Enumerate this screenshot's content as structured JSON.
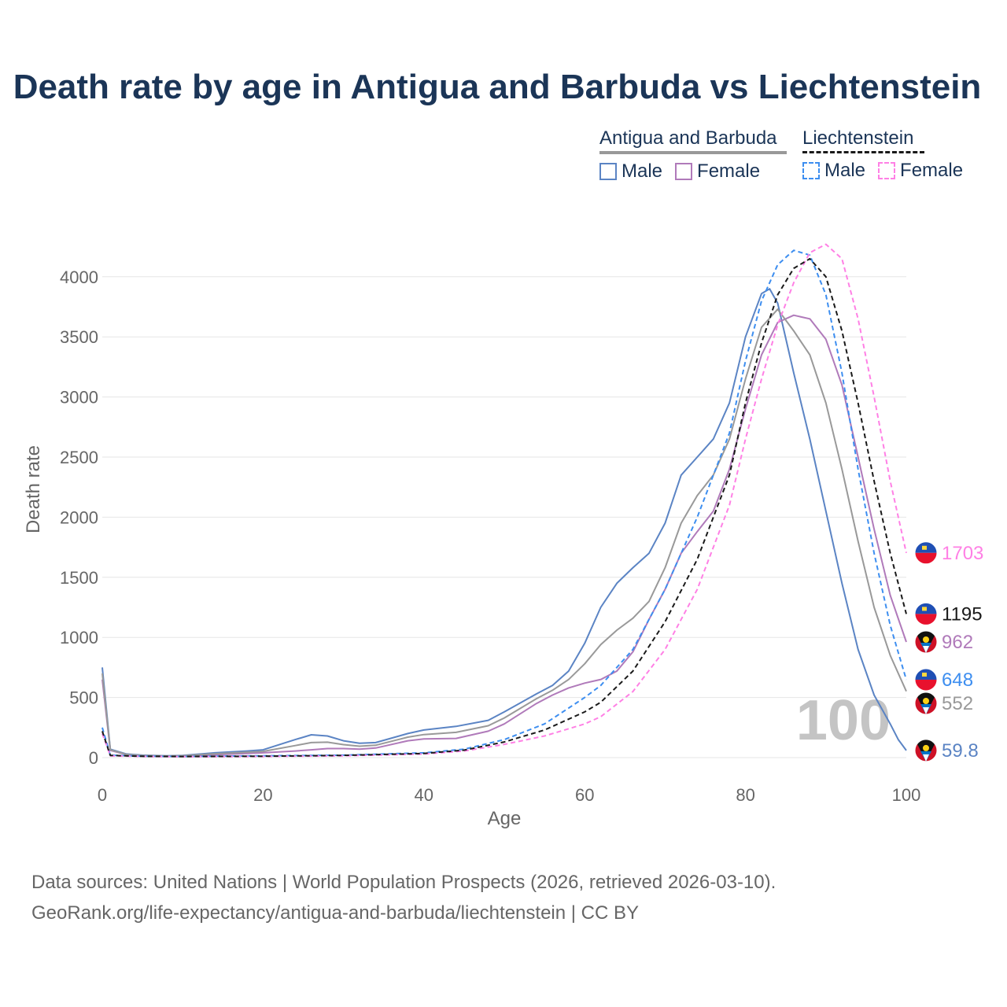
{
  "title": "Death rate by age in Antigua and Barbuda vs Liechtenstein",
  "legend": {
    "groups": [
      {
        "name": "Antigua and Barbuda",
        "items": [
          {
            "label": "Male",
            "color": "#5b84c4",
            "style": "solid"
          },
          {
            "label": "Female",
            "color": "#b07aba",
            "style": "solid"
          }
        ]
      },
      {
        "name": "Liechtenstein",
        "items": [
          {
            "label": "Male",
            "color": "#3d8ef0",
            "style": "dashed"
          },
          {
            "label": "Female",
            "color": "#ff80e5",
            "style": "dashed"
          }
        ]
      }
    ]
  },
  "big_label": "100",
  "footer": {
    "line1": "Data sources: United Nations | World Population Prospects (2026, retrieved 2026-03-10).",
    "line2": "GeoRank.org/life-expectancy/antigua-and-barbuda/liechtenstein | CC BY"
  },
  "chart_data": {
    "type": "line",
    "title": "Death rate by age in Antigua and Barbuda vs Liechtenstein",
    "xlabel": "Age",
    "ylabel": "Death rate",
    "xlim": [
      0,
      100
    ],
    "ylim": [
      0,
      4300
    ],
    "xticks": [
      0,
      20,
      40,
      60,
      80,
      100
    ],
    "yticks": [
      0,
      500,
      1000,
      1500,
      2000,
      2500,
      3000,
      3500,
      4000
    ],
    "grid": true,
    "series": [
      {
        "name": "Antigua and Barbuda Male",
        "color": "#5b84c4",
        "dash": "solid",
        "end_label": "59.8",
        "flag": "antigua-and-barbuda",
        "points": [
          [
            0,
            750
          ],
          [
            1,
            70
          ],
          [
            3,
            30
          ],
          [
            5,
            20
          ],
          [
            8,
            15
          ],
          [
            10,
            18
          ],
          [
            14,
            40
          ],
          [
            18,
            55
          ],
          [
            20,
            65
          ],
          [
            24,
            150
          ],
          [
            26,
            190
          ],
          [
            28,
            180
          ],
          [
            30,
            140
          ],
          [
            32,
            120
          ],
          [
            34,
            125
          ],
          [
            38,
            200
          ],
          [
            40,
            230
          ],
          [
            44,
            260
          ],
          [
            48,
            310
          ],
          [
            50,
            380
          ],
          [
            54,
            530
          ],
          [
            56,
            600
          ],
          [
            58,
            720
          ],
          [
            60,
            950
          ],
          [
            62,
            1250
          ],
          [
            64,
            1450
          ],
          [
            66,
            1580
          ],
          [
            68,
            1700
          ],
          [
            70,
            1950
          ],
          [
            72,
            2350
          ],
          [
            74,
            2500
          ],
          [
            76,
            2650
          ],
          [
            78,
            2950
          ],
          [
            80,
            3500
          ],
          [
            82,
            3860
          ],
          [
            83,
            3900
          ],
          [
            84,
            3780
          ],
          [
            86,
            3200
          ],
          [
            88,
            2650
          ],
          [
            90,
            2050
          ],
          [
            92,
            1450
          ],
          [
            94,
            900
          ],
          [
            96,
            520
          ],
          [
            98,
            280
          ],
          [
            99,
            150
          ],
          [
            100,
            59.8
          ]
        ]
      },
      {
        "name": "Antigua and Barbuda Female",
        "color": "#b07aba",
        "dash": "solid",
        "end_label": "962",
        "flag": "antigua-and-barbuda",
        "points": [
          [
            0,
            650
          ],
          [
            1,
            60
          ],
          [
            3,
            25
          ],
          [
            5,
            15
          ],
          [
            8,
            12
          ],
          [
            10,
            14
          ],
          [
            14,
            25
          ],
          [
            18,
            35
          ],
          [
            20,
            40
          ],
          [
            24,
            55
          ],
          [
            26,
            65
          ],
          [
            28,
            75
          ],
          [
            30,
            75
          ],
          [
            32,
            70
          ],
          [
            34,
            80
          ],
          [
            38,
            140
          ],
          [
            40,
            155
          ],
          [
            44,
            160
          ],
          [
            48,
            220
          ],
          [
            50,
            280
          ],
          [
            54,
            450
          ],
          [
            56,
            520
          ],
          [
            58,
            580
          ],
          [
            60,
            620
          ],
          [
            62,
            650
          ],
          [
            64,
            720
          ],
          [
            66,
            880
          ],
          [
            68,
            1150
          ],
          [
            70,
            1400
          ],
          [
            72,
            1700
          ],
          [
            74,
            1880
          ],
          [
            76,
            2050
          ],
          [
            78,
            2400
          ],
          [
            80,
            2900
          ],
          [
            82,
            3350
          ],
          [
            84,
            3620
          ],
          [
            86,
            3680
          ],
          [
            88,
            3650
          ],
          [
            90,
            3480
          ],
          [
            92,
            3100
          ],
          [
            94,
            2500
          ],
          [
            96,
            1900
          ],
          [
            98,
            1350
          ],
          [
            100,
            962
          ]
        ]
      },
      {
        "name": "Antigua and Barbuda (both sexes)",
        "color": "#999999",
        "dash": "solid",
        "end_label": "552",
        "flag": "antigua-and-barbuda",
        "points": [
          [
            0,
            700
          ],
          [
            1,
            65
          ],
          [
            3,
            27
          ],
          [
            5,
            17
          ],
          [
            8,
            14
          ],
          [
            10,
            16
          ],
          [
            14,
            32
          ],
          [
            18,
            45
          ],
          [
            20,
            52
          ],
          [
            24,
            100
          ],
          [
            26,
            125
          ],
          [
            28,
            128
          ],
          [
            30,
            108
          ],
          [
            32,
            95
          ],
          [
            34,
            103
          ],
          [
            38,
            170
          ],
          [
            40,
            192
          ],
          [
            44,
            210
          ],
          [
            48,
            265
          ],
          [
            50,
            330
          ],
          [
            54,
            490
          ],
          [
            56,
            560
          ],
          [
            58,
            650
          ],
          [
            60,
            780
          ],
          [
            62,
            940
          ],
          [
            64,
            1060
          ],
          [
            66,
            1160
          ],
          [
            68,
            1300
          ],
          [
            70,
            1580
          ],
          [
            72,
            1950
          ],
          [
            74,
            2180
          ],
          [
            76,
            2350
          ],
          [
            78,
            2650
          ],
          [
            80,
            3150
          ],
          [
            82,
            3580
          ],
          [
            84,
            3730
          ],
          [
            86,
            3550
          ],
          [
            88,
            3350
          ],
          [
            90,
            2950
          ],
          [
            92,
            2400
          ],
          [
            94,
            1800
          ],
          [
            96,
            1250
          ],
          [
            98,
            850
          ],
          [
            100,
            552
          ]
        ]
      },
      {
        "name": "Liechtenstein Male",
        "color": "#3d8ef0",
        "dash": "dashed",
        "end_label": "648",
        "flag": "liechtenstein",
        "points": [
          [
            0,
            250
          ],
          [
            1,
            20
          ],
          [
            5,
            12
          ],
          [
            10,
            10
          ],
          [
            20,
            15
          ],
          [
            30,
            20
          ],
          [
            40,
            40
          ],
          [
            45,
            70
          ],
          [
            50,
            150
          ],
          [
            55,
            280
          ],
          [
            60,
            500
          ],
          [
            62,
            600
          ],
          [
            66,
            900
          ],
          [
            70,
            1400
          ],
          [
            74,
            2000
          ],
          [
            78,
            2700
          ],
          [
            80,
            3300
          ],
          [
            82,
            3800
          ],
          [
            84,
            4100
          ],
          [
            86,
            4220
          ],
          [
            88,
            4180
          ],
          [
            90,
            3850
          ],
          [
            92,
            3200
          ],
          [
            94,
            2400
          ],
          [
            96,
            1700
          ],
          [
            98,
            1100
          ],
          [
            100,
            648
          ]
        ]
      },
      {
        "name": "Liechtenstein Female",
        "color": "#ff80e5",
        "dash": "dashed",
        "end_label": "1703",
        "flag": "liechtenstein",
        "points": [
          [
            0,
            200
          ],
          [
            1,
            15
          ],
          [
            5,
            10
          ],
          [
            10,
            8
          ],
          [
            20,
            10
          ],
          [
            30,
            15
          ],
          [
            40,
            30
          ],
          [
            45,
            55
          ],
          [
            50,
            110
          ],
          [
            55,
            180
          ],
          [
            60,
            280
          ],
          [
            62,
            340
          ],
          [
            66,
            550
          ],
          [
            70,
            900
          ],
          [
            74,
            1400
          ],
          [
            78,
            2100
          ],
          [
            80,
            2650
          ],
          [
            82,
            3150
          ],
          [
            84,
            3600
          ],
          [
            86,
            3950
          ],
          [
            88,
            4200
          ],
          [
            90,
            4270
          ],
          [
            92,
            4150
          ],
          [
            94,
            3650
          ],
          [
            96,
            3000
          ],
          [
            98,
            2300
          ],
          [
            100,
            1703
          ]
        ]
      },
      {
        "name": "Liechtenstein (both sexes)",
        "color": "#1a1a1a",
        "dash": "dashed",
        "end_label": "1195",
        "flag": "liechtenstein",
        "points": [
          [
            0,
            220
          ],
          [
            1,
            18
          ],
          [
            5,
            11
          ],
          [
            10,
            9
          ],
          [
            20,
            12
          ],
          [
            30,
            18
          ],
          [
            40,
            35
          ],
          [
            45,
            62
          ],
          [
            50,
            130
          ],
          [
            55,
            230
          ],
          [
            60,
            380
          ],
          [
            62,
            460
          ],
          [
            66,
            720
          ],
          [
            70,
            1130
          ],
          [
            74,
            1650
          ],
          [
            78,
            2350
          ],
          [
            80,
            2950
          ],
          [
            82,
            3450
          ],
          [
            84,
            3850
          ],
          [
            86,
            4070
          ],
          [
            88,
            4150
          ],
          [
            90,
            4000
          ],
          [
            92,
            3550
          ],
          [
            94,
            2950
          ],
          [
            96,
            2300
          ],
          [
            98,
            1700
          ],
          [
            100,
            1195
          ]
        ]
      }
    ]
  }
}
